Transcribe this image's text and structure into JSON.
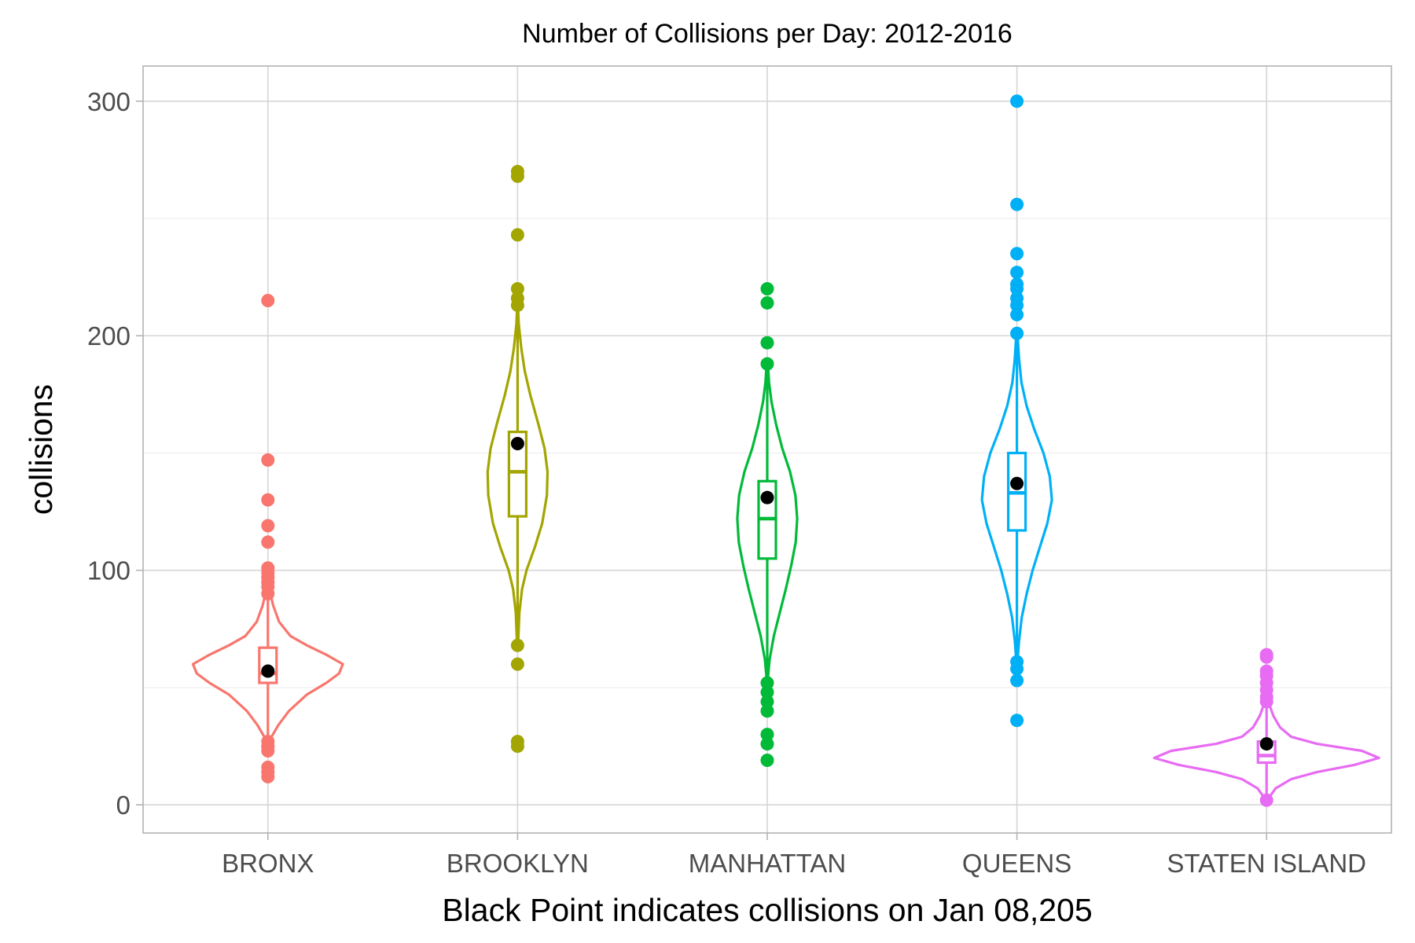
{
  "chart_data": {
    "type": "violin",
    "title": "Number of Collisions per Day: 2012-2016",
    "xlabel": "Black Point indicates collisions on Jan 08,205",
    "ylabel": "collisions",
    "ylim": [
      -12,
      315
    ],
    "yticks": [
      0,
      100,
      200,
      300
    ],
    "grid": true,
    "legend": "none",
    "categories": [
      "BRONX",
      "BROOKLYN",
      "MANHATTAN",
      "QUEENS",
      "STATEN ISLAND"
    ],
    "series": [
      {
        "category": "BRONX",
        "color": "#F8766D",
        "violin_range": [
          28,
          92
        ],
        "violin_profile": [
          [
            28,
            0.03
          ],
          [
            34,
            0.14
          ],
          [
            40,
            0.28
          ],
          [
            47,
            0.52
          ],
          [
            52,
            0.78
          ],
          [
            56,
            0.95
          ],
          [
            60,
            1.0
          ],
          [
            64,
            0.78
          ],
          [
            68,
            0.52
          ],
          [
            72,
            0.3
          ],
          [
            78,
            0.15
          ],
          [
            85,
            0.07
          ],
          [
            92,
            0.02
          ]
        ],
        "violin_halfwidth": 0.3,
        "box": {
          "q1": 52,
          "median": 56,
          "q3": 67
        },
        "whisker": [
          28,
          92
        ],
        "mean_point": 57,
        "outliers": [
          12,
          14,
          16,
          23,
          25,
          27,
          90,
          93,
          95,
          97,
          99,
          101,
          112,
          119,
          130,
          147,
          215
        ]
      },
      {
        "category": "BROOKLYN",
        "color": "#A3A500",
        "violin_range": [
          70,
          210
        ],
        "violin_profile": [
          [
            70,
            0.02
          ],
          [
            82,
            0.06
          ],
          [
            92,
            0.15
          ],
          [
            100,
            0.3
          ],
          [
            110,
            0.58
          ],
          [
            120,
            0.82
          ],
          [
            132,
            0.98
          ],
          [
            142,
            1.0
          ],
          [
            152,
            0.9
          ],
          [
            162,
            0.7
          ],
          [
            175,
            0.42
          ],
          [
            185,
            0.24
          ],
          [
            195,
            0.12
          ],
          [
            205,
            0.04
          ],
          [
            210,
            0.02
          ]
        ],
        "violin_halfwidth": 0.12,
        "box": {
          "q1": 123,
          "median": 142,
          "q3": 159
        },
        "whisker": [
          70,
          210
        ],
        "mean_point": 154,
        "outliers": [
          25,
          27,
          60,
          68,
          213,
          216,
          220,
          243,
          268,
          270
        ]
      },
      {
        "category": "MANHATTAN",
        "color": "#00BA38",
        "violin_range": [
          54,
          188
        ],
        "violin_profile": [
          [
            54,
            0.02
          ],
          [
            62,
            0.08
          ],
          [
            72,
            0.22
          ],
          [
            82,
            0.42
          ],
          [
            92,
            0.62
          ],
          [
            102,
            0.8
          ],
          [
            112,
            0.95
          ],
          [
            122,
            1.0
          ],
          [
            132,
            0.94
          ],
          [
            142,
            0.76
          ],
          [
            152,
            0.5
          ],
          [
            162,
            0.3
          ],
          [
            172,
            0.14
          ],
          [
            180,
            0.06
          ],
          [
            188,
            0.02
          ]
        ],
        "violin_halfwidth": 0.12,
        "box": {
          "q1": 105,
          "median": 122,
          "q3": 138
        },
        "whisker": [
          54,
          188
        ],
        "mean_point": 131,
        "outliers": [
          19,
          26,
          30,
          40,
          44,
          48,
          52,
          188,
          197,
          214,
          220
        ]
      },
      {
        "category": "QUEENS",
        "color": "#00B0F6",
        "violin_range": [
          62,
          200
        ],
        "violin_profile": [
          [
            62,
            0.02
          ],
          [
            70,
            0.06
          ],
          [
            80,
            0.14
          ],
          [
            90,
            0.28
          ],
          [
            100,
            0.45
          ],
          [
            110,
            0.66
          ],
          [
            120,
            0.87
          ],
          [
            130,
            1.0
          ],
          [
            140,
            0.94
          ],
          [
            150,
            0.76
          ],
          [
            160,
            0.5
          ],
          [
            170,
            0.28
          ],
          [
            180,
            0.13
          ],
          [
            190,
            0.06
          ],
          [
            200,
            0.02
          ]
        ],
        "violin_halfwidth": 0.14,
        "box": {
          "q1": 117,
          "median": 133,
          "q3": 150
        },
        "whisker": [
          62,
          200
        ],
        "mean_point": 137,
        "outliers": [
          36,
          53,
          58,
          61,
          201,
          209,
          213,
          216,
          220,
          222,
          227,
          235,
          256,
          300
        ]
      },
      {
        "category": "STATEN ISLAND",
        "color": "#E76BF3",
        "violin_range": [
          3,
          46
        ],
        "violin_profile": [
          [
            3,
            0.02
          ],
          [
            7,
            0.08
          ],
          [
            11,
            0.22
          ],
          [
            14,
            0.45
          ],
          [
            17,
            0.78
          ],
          [
            20,
            1.0
          ],
          [
            23,
            0.85
          ],
          [
            26,
            0.45
          ],
          [
            29,
            0.22
          ],
          [
            33,
            0.12
          ],
          [
            38,
            0.06
          ],
          [
            42,
            0.03
          ],
          [
            46,
            0.01
          ]
        ],
        "violin_halfwidth": 0.45,
        "box": {
          "q1": 18,
          "median": 21,
          "q3": 27
        },
        "whisker": [
          3,
          46
        ],
        "mean_point": 26,
        "outliers": [
          2,
          44,
          46,
          49,
          52,
          55,
          57,
          63,
          64
        ]
      }
    ]
  }
}
